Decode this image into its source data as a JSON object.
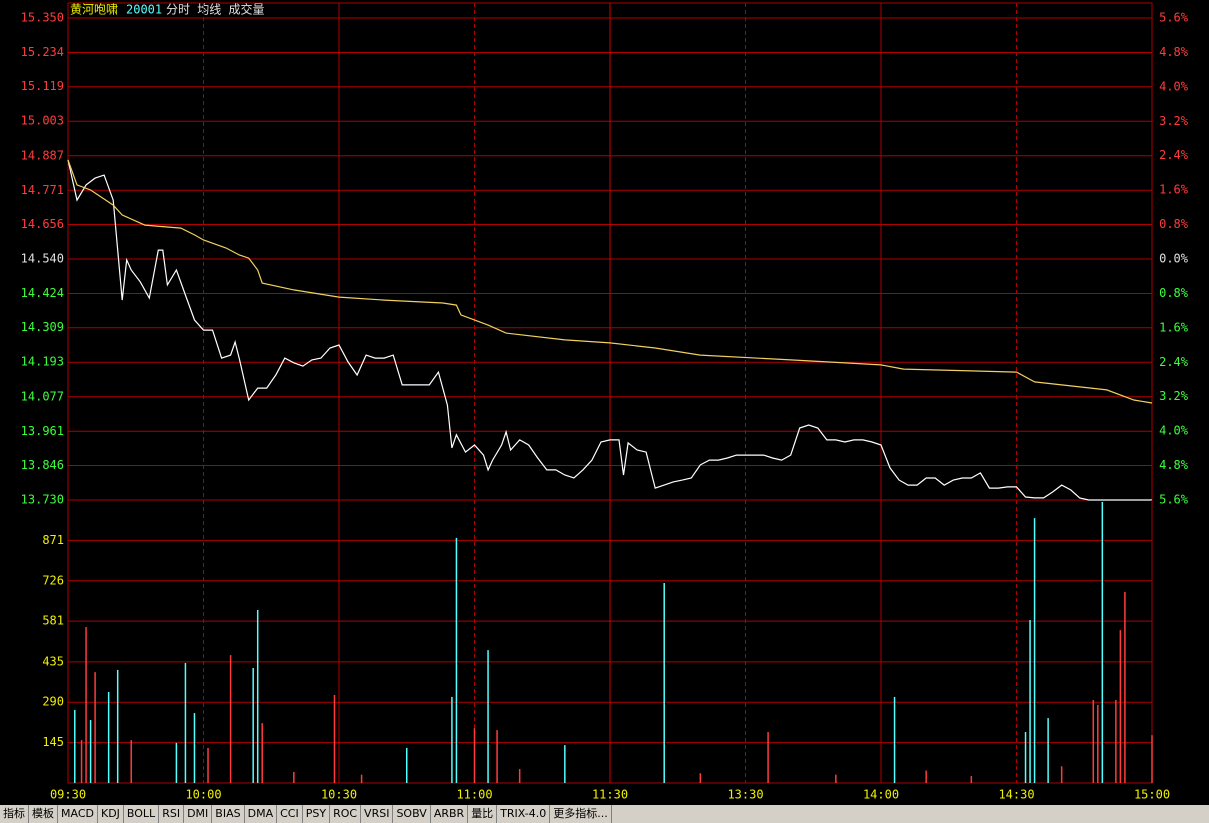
{
  "chart_data": [
    {
      "type": "line",
      "title": "黄河咆啸",
      "code": "20001",
      "subtitle": "分时 均线 成交量",
      "xlim": [
        0,
        240
      ],
      "xticks": [
        {
          "value": 0,
          "label": "09:30"
        },
        {
          "value": 30,
          "label": "10:00"
        },
        {
          "value": 60,
          "label": "10:30"
        },
        {
          "value": 90,
          "label": "11:00"
        },
        {
          "value": 120,
          "label": "11:30"
        },
        {
          "value": 150,
          "label": "13:30"
        },
        {
          "value": 180,
          "label": "14:00"
        },
        {
          "value": 210,
          "label": "14:30"
        },
        {
          "value": 240,
          "label": "15:00"
        }
      ],
      "ylim": [
        13.73,
        15.35
      ],
      "yticks": [
        {
          "value": 15.35,
          "label": "15.350"
        },
        {
          "value": 15.234,
          "label": "15.234"
        },
        {
          "value": 15.119,
          "label": "15.119"
        },
        {
          "value": 15.003,
          "label": "15.003"
        },
        {
          "value": 14.887,
          "label": "14.887"
        },
        {
          "value": 14.771,
          "label": "14.771"
        },
        {
          "value": 14.656,
          "label": "14.656"
        },
        {
          "value": 14.54,
          "label": "14.540"
        },
        {
          "value": 14.424,
          "label": "14.424"
        },
        {
          "value": 14.309,
          "label": "14.309"
        },
        {
          "value": 14.193,
          "label": "14.193"
        },
        {
          "value": 14.077,
          "label": "14.077"
        },
        {
          "value": 13.961,
          "label": "13.961"
        },
        {
          "value": 13.846,
          "label": "13.846"
        },
        {
          "value": 13.73,
          "label": "13.730"
        }
      ],
      "y2lim": [
        -5.6,
        5.6
      ],
      "y2ticks": [
        {
          "value": 5.6,
          "label": "5.6%"
        },
        {
          "value": 4.8,
          "label": "4.8%"
        },
        {
          "value": 4.0,
          "label": "4.0%"
        },
        {
          "value": 3.2,
          "label": "3.2%"
        },
        {
          "value": 2.4,
          "label": "2.4%"
        },
        {
          "value": 1.6,
          "label": "1.6%"
        },
        {
          "value": 0.8,
          "label": "0.8%"
        },
        {
          "value": 0,
          "label": "0.0%"
        },
        {
          "value": -0.8,
          "label": "0.8%"
        },
        {
          "value": -1.6,
          "label": "1.6%"
        },
        {
          "value": -2.4,
          "label": "2.4%"
        },
        {
          "value": -3.2,
          "label": "3.2%"
        },
        {
          "value": -4.0,
          "label": "4.0%"
        },
        {
          "value": -4.8,
          "label": "4.8%"
        },
        {
          "value": -5.6,
          "label": "5.6%"
        }
      ],
      "grid": true,
      "series": [
        {
          "color": "#ffffff",
          "x": [
            0,
            2,
            4,
            6,
            8,
            10,
            12,
            13,
            14,
            16,
            18,
            20,
            21,
            22,
            24,
            26,
            28,
            30,
            32,
            34,
            36,
            37,
            38,
            40,
            42,
            44,
            46,
            48,
            50,
            52,
            54,
            56,
            58,
            60,
            62,
            64,
            66,
            68,
            70,
            72,
            74,
            76,
            78,
            80,
            82,
            84,
            85,
            86,
            88,
            90,
            92,
            93,
            94,
            96,
            97,
            98,
            100,
            102,
            104,
            106,
            108,
            110,
            112,
            114,
            116,
            118,
            120,
            122,
            123,
            124,
            126,
            128,
            130,
            132,
            134,
            136,
            138,
            140,
            142,
            144,
            146,
            148,
            150,
            152,
            154,
            156,
            158,
            160,
            162,
            164,
            166,
            168,
            170,
            172,
            174,
            176,
            178,
            180,
            182,
            184,
            186,
            188,
            190,
            192,
            194,
            196,
            198,
            200,
            202,
            204,
            206,
            208,
            210,
            212,
            214,
            216,
            218,
            220,
            222,
            224,
            226,
            228,
            232,
            236,
            240
          ],
          "values": [
            14.873,
            14.738,
            14.789,
            14.812,
            14.822,
            14.738,
            14.402,
            14.537,
            14.503,
            14.463,
            14.409,
            14.57,
            14.57,
            14.453,
            14.503,
            14.419,
            14.335,
            14.301,
            14.301,
            14.207,
            14.217,
            14.261,
            14.201,
            14.066,
            14.106,
            14.106,
            14.15,
            14.207,
            14.191,
            14.18,
            14.201,
            14.207,
            14.241,
            14.251,
            14.194,
            14.15,
            14.217,
            14.207,
            14.207,
            14.217,
            14.117,
            14.117,
            14.117,
            14.117,
            14.16,
            14.049,
            13.905,
            13.949,
            13.891,
            13.915,
            13.881,
            13.831,
            13.864,
            13.915,
            13.959,
            13.898,
            13.932,
            13.915,
            13.871,
            13.831,
            13.831,
            13.814,
            13.804,
            13.831,
            13.864,
            13.925,
            13.932,
            13.932,
            13.814,
            13.922,
            13.898,
            13.891,
            13.77,
            13.78,
            13.791,
            13.797,
            13.804,
            13.848,
            13.864,
            13.864,
            13.871,
            13.881,
            13.881,
            13.881,
            13.881,
            13.871,
            13.864,
            13.881,
            13.972,
            13.982,
            13.972,
            13.932,
            13.932,
            13.925,
            13.932,
            13.932,
            13.925,
            13.915,
            13.838,
            13.797,
            13.78,
            13.78,
            13.804,
            13.804,
            13.78,
            13.797,
            13.804,
            13.804,
            13.821,
            13.77,
            13.77,
            13.774,
            13.774,
            13.74,
            13.737,
            13.737,
            13.757,
            13.78,
            13.764,
            13.737,
            13.73,
            13.73,
            13.73,
            13.73,
            13.73
          ]
        },
        {
          "color": "#f0d060",
          "x": [
            0,
            2,
            5,
            10,
            12,
            17,
            25,
            28,
            30,
            35,
            38,
            40,
            42,
            43,
            50,
            60,
            70,
            83,
            86,
            87,
            93,
            97,
            110,
            120,
            130,
            140,
            160,
            180,
            185,
            200,
            210,
            214,
            230,
            236,
            240
          ],
          "values": [
            14.873,
            14.789,
            14.772,
            14.721,
            14.688,
            14.654,
            14.644,
            14.621,
            14.604,
            14.577,
            14.553,
            14.543,
            14.503,
            14.459,
            14.436,
            14.412,
            14.402,
            14.392,
            14.385,
            14.352,
            14.318,
            14.291,
            14.268,
            14.258,
            14.241,
            14.217,
            14.201,
            14.184,
            14.17,
            14.164,
            14.16,
            14.127,
            14.1,
            14.066,
            14.056
          ]
        }
      ]
    },
    {
      "type": "bar",
      "xlim": [
        0,
        240
      ],
      "xticks": [
        {
          "value": 0,
          "label": "09:30"
        },
        {
          "value": 30,
          "label": "10:00"
        },
        {
          "value": 60,
          "label": "10:30"
        },
        {
          "value": 90,
          "label": "11:00"
        },
        {
          "value": 120,
          "label": "11:30"
        },
        {
          "value": 150,
          "label": "13:30"
        },
        {
          "value": 180,
          "label": "14:00"
        },
        {
          "value": 210,
          "label": "14:30"
        },
        {
          "value": 240,
          "label": "15:00"
        }
      ],
      "ylim": [
        0,
        1016
      ],
      "yticks": [
        145,
        290,
        435,
        581,
        726,
        871
      ],
      "grid": true,
      "series": [
        {
          "color": "#54ffff",
          "x": [
            1.5,
            5,
            9,
            11,
            24,
            26,
            28,
            41,
            42,
            75,
            85,
            86,
            93,
            110,
            132,
            183,
            212,
            213,
            214,
            217,
            229
          ],
          "values": [
            262,
            226,
            327,
            406,
            144,
            431,
            251,
            413,
            621,
            126,
            309,
            880,
            477,
            136,
            718,
            309,
            183,
            585,
            951,
            233,
            1009
          ]
        },
        {
          "color": "#ff3c3c",
          "x": [
            3,
            4,
            6,
            14,
            31,
            36,
            43,
            50,
            59,
            65,
            90,
            95,
            100,
            140,
            155,
            170,
            190,
            200,
            220,
            227,
            228,
            232,
            233,
            234,
            240
          ],
          "values": [
            154,
            560,
            398,
            154,
            126,
            459,
            215,
            40,
            316,
            30,
            197,
            190,
            50,
            35,
            183,
            30,
            45,
            25,
            60,
            298,
            280,
            298,
            549,
            686,
            172
          ]
        }
      ]
    }
  ],
  "toolbar": [
    "指标",
    "模板",
    "MACD",
    "KDJ",
    "BOLL",
    "RSI",
    "DMI",
    "BIAS",
    "DMA",
    "CCI",
    "PSY",
    "ROC",
    "VRSI",
    "SOBV",
    "ARBR",
    "量比",
    "TRIX-4.0",
    "更多指标..."
  ]
}
